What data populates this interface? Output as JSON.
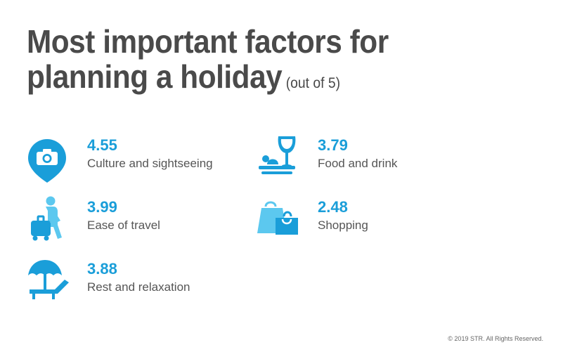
{
  "title": {
    "line1": "Most important factors for",
    "line2": "planning a holiday",
    "suffix": "(out of 5)"
  },
  "colors": {
    "accent": "#1a9ed9",
    "accent_light": "#5cc8ef",
    "text": "#4a4a4a"
  },
  "chart_data": {
    "type": "table",
    "title": "Most important factors for planning a holiday",
    "subtitle": "(out of 5)",
    "scale_max": 5,
    "factors": [
      {
        "label": "Culture and sightseeing",
        "value": "4.55",
        "icon": "camera-pin-icon"
      },
      {
        "label": "Ease of travel",
        "value": "3.99",
        "icon": "traveler-luggage-icon"
      },
      {
        "label": "Rest and relaxation",
        "value": "3.88",
        "icon": "beach-umbrella-lounger-icon"
      },
      {
        "label": "Food and drink",
        "value": "3.79",
        "icon": "food-wine-icon"
      },
      {
        "label": "Shopping",
        "value": "2.48",
        "icon": "shopping-bags-icon"
      }
    ]
  },
  "footer": {
    "copyright": "© 2019 STR. All Rights Reserved."
  }
}
